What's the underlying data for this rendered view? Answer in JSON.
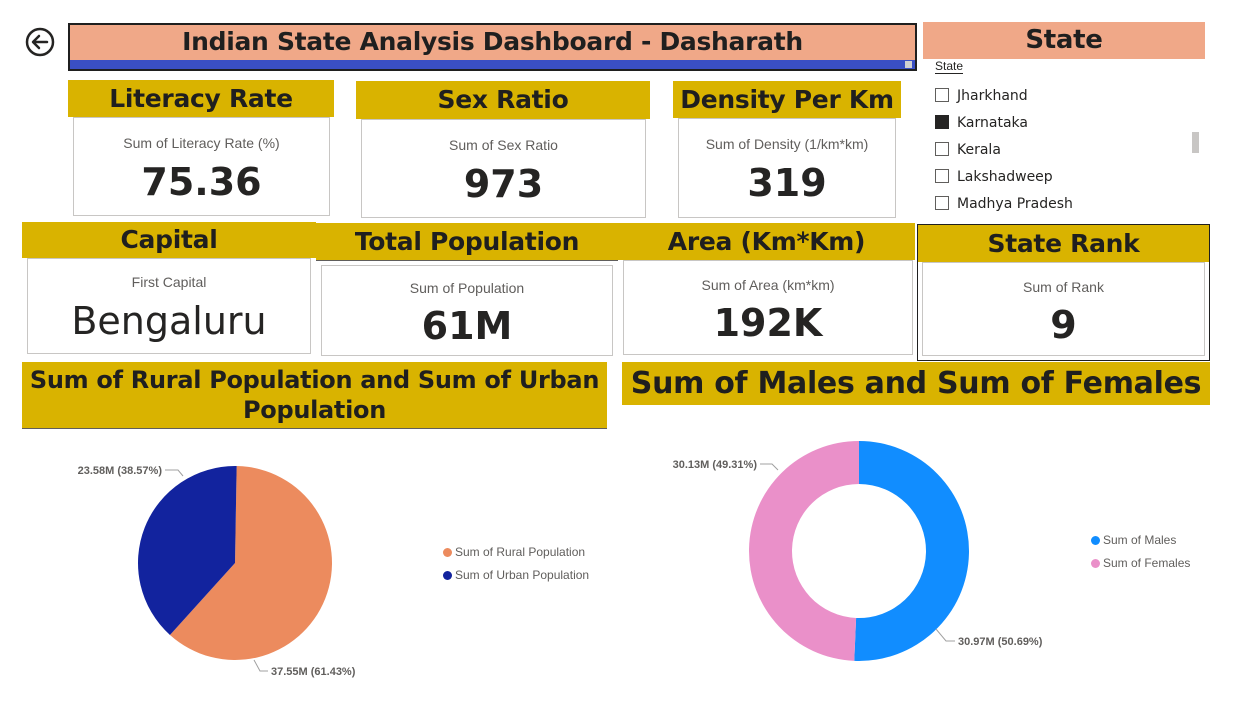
{
  "header": {
    "title": "Indian State Analysis Dashboard - Dasharath",
    "back_icon": "back-arrow-icon"
  },
  "slicer": {
    "title": "State",
    "field_label": "State",
    "items": [
      {
        "label": "Jharkhand",
        "checked": false
      },
      {
        "label": "Karnataka",
        "checked": true
      },
      {
        "label": "Kerala",
        "checked": false
      },
      {
        "label": "Lakshadweep",
        "checked": false
      },
      {
        "label": "Madhya Pradesh",
        "checked": false
      }
    ]
  },
  "cards": {
    "literacy": {
      "title": "Literacy Rate",
      "label": "Sum of Literacy Rate (%)",
      "value": "75.36"
    },
    "sex_ratio": {
      "title": "Sex Ratio",
      "label": "Sum of Sex Ratio",
      "value": "973"
    },
    "density": {
      "title": "Density Per Km",
      "label": "Sum of Density (1/km*km)",
      "value": "319"
    },
    "capital": {
      "title": "Capital",
      "label": "First Capital",
      "value": "Bengaluru"
    },
    "population": {
      "title": "Total Population",
      "label": "Sum of Population",
      "value": "61M"
    },
    "area": {
      "title": "Area (Km*Km)",
      "label": "Sum of Area (km*km)",
      "value": "192K"
    },
    "rank": {
      "title": "State Rank",
      "label": "Sum of Rank",
      "value": "9"
    }
  },
  "colors": {
    "accent": "#d9b300",
    "title_bg": "#f0a888",
    "rural": "#ec8b5e",
    "urban": "#12239e",
    "males": "#118dff",
    "females": "#ea90c9"
  },
  "chart_data": [
    {
      "type": "pie",
      "title_line1": "Sum of Rural Population and Sum of Urban",
      "title_line2": "Population",
      "series": [
        {
          "name": "Sum of Rural Population",
          "value": 37.55,
          "label": "37.55M (61.43%)"
        },
        {
          "name": "Sum of Urban Population",
          "value": 23.58,
          "label": "23.58M (38.57%)"
        }
      ]
    },
    {
      "type": "donut",
      "title": "Sum of Males and Sum of Females",
      "series": [
        {
          "name": "Sum of Males",
          "value": 30.97,
          "label": "30.97M (50.69%)"
        },
        {
          "name": "Sum of Females",
          "value": 30.13,
          "label": "30.13M (49.31%)"
        }
      ]
    }
  ]
}
